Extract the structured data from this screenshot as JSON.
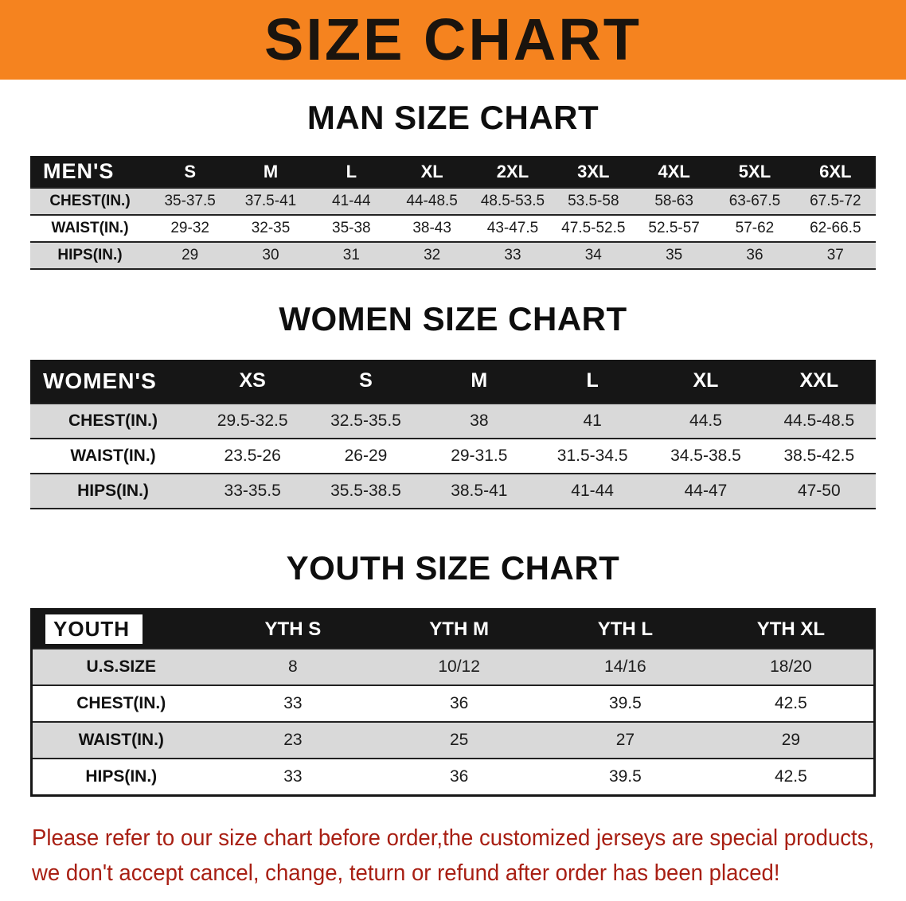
{
  "banner": {
    "title": "SIZE CHART"
  },
  "colors": {
    "banner_bg": "#f5831f",
    "banner_text": "#1a140e",
    "table_header_bg": "#161616",
    "table_header_text": "#ffffff",
    "row_shade_gray": "#d9d9d9",
    "row_shade_white": "#ffffff",
    "disclaimer_text": "#a81f13"
  },
  "chart_data": [
    {
      "type": "table",
      "name": "men-size-table",
      "title": "MAN SIZE CHART",
      "columns": [
        "MEN'S",
        "S",
        "M",
        "L",
        "XL",
        "2XL",
        "3XL",
        "4XL",
        "5XL",
        "6XL"
      ],
      "rows": [
        [
          "CHEST(IN.)",
          "35-37.5",
          "37.5-41",
          "41-44",
          "44-48.5",
          "48.5-53.5",
          "53.5-58",
          "58-63",
          "63-67.5",
          "67.5-72"
        ],
        [
          "WAIST(IN.)",
          "29-32",
          "32-35",
          "35-38",
          "38-43",
          "43-47.5",
          "47.5-52.5",
          "52.5-57",
          "57-62",
          "62-66.5"
        ],
        [
          "HIPS(IN.)",
          "29",
          "30",
          "31",
          "32",
          "33",
          "34",
          "35",
          "36",
          "37"
        ]
      ]
    },
    {
      "type": "table",
      "name": "women-size-table",
      "title": "WOMEN SIZE CHART",
      "columns": [
        "WOMEN'S",
        "XS",
        "S",
        "M",
        "L",
        "XL",
        "XXL"
      ],
      "rows": [
        [
          "CHEST(IN.)",
          "29.5-32.5",
          "32.5-35.5",
          "38",
          "41",
          "44.5",
          "44.5-48.5"
        ],
        [
          "WAIST(IN.)",
          "23.5-26",
          "26-29",
          "29-31.5",
          "31.5-34.5",
          "34.5-38.5",
          "38.5-42.5"
        ],
        [
          "HIPS(IN.)",
          "33-35.5",
          "35.5-38.5",
          "38.5-41",
          "41-44",
          "44-47",
          "47-50"
        ]
      ]
    },
    {
      "type": "table",
      "name": "youth-size-table",
      "title": "YOUTH SIZE CHART",
      "columns": [
        "YOUTH",
        "YTH S",
        "YTH M",
        "YTH L",
        "YTH XL"
      ],
      "rows": [
        [
          "U.S.SIZE",
          "8",
          "10/12",
          "14/16",
          "18/20"
        ],
        [
          "CHEST(IN.)",
          "33",
          "36",
          "39.5",
          "42.5"
        ],
        [
          "WAIST(IN.)",
          "23",
          "25",
          "27",
          "29"
        ],
        [
          "HIPS(IN.)",
          "33",
          "36",
          "39.5",
          "42.5"
        ]
      ]
    }
  ],
  "disclaimer": {
    "line1": "Please refer to our size chart before order,the customized jerseys are special products,",
    "line2": "we don't accept cancel, change, teturn or refund after order has been placed!"
  }
}
